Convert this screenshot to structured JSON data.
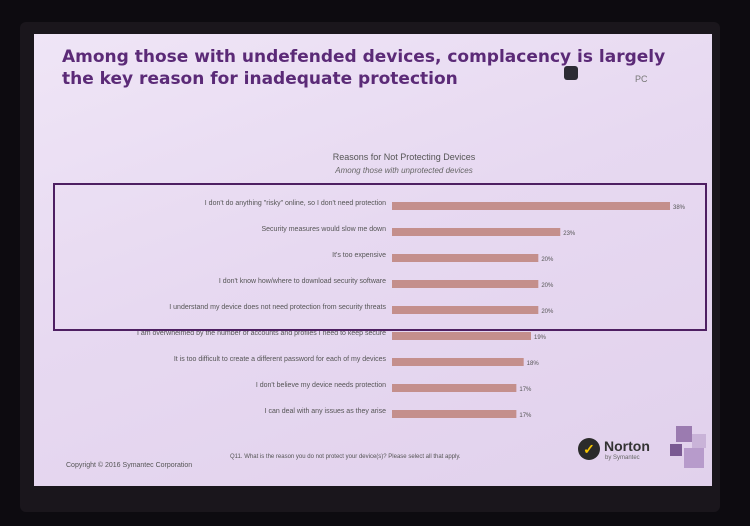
{
  "slide": {
    "title": "Among those with undefended devices, complacency is largely the key reason for inadequate protection",
    "corner_text": "PC",
    "copyright": "Copyright © 2016 Symantec Corporation",
    "question": "Q11. What is the reason you do not protect your device(s)? Please select all that apply.",
    "logo_name": "Norton",
    "logo_sub": "by Symantec",
    "logo_check": "✓",
    "colors": {
      "title": "#5b2a77",
      "bar": "#c48f8c",
      "highlight_box": "#4e1f62"
    }
  },
  "chart_data": {
    "type": "bar",
    "orientation": "horizontal",
    "title": "Reasons for Not Protecting Devices",
    "subtitle": "Among those with unprotected devices",
    "categories": [
      "I don't do anything \"risky\" online, so I don't need protection",
      "Security measures would slow me down",
      "It's too expensive",
      "I don't know how/where to download security software",
      "I understand my device does not need protection from security threats",
      "I am overwhelmed by the number of accounts and profiles I need to keep secure",
      "It is too difficult to create a different password for each of my devices",
      "I don't believe my device needs protection",
      "I can deal with any issues as they arise"
    ],
    "values": [
      38,
      23,
      20,
      20,
      20,
      19,
      18,
      17,
      17
    ],
    "value_labels": [
      "38%",
      "23%",
      "20%",
      "20%",
      "20%",
      "19%",
      "18%",
      "17%",
      "17%"
    ],
    "xlim": [
      0,
      38
    ],
    "highlighted_categories": [
      0,
      1,
      2,
      3,
      4
    ],
    "grid": false,
    "legend": "none"
  }
}
